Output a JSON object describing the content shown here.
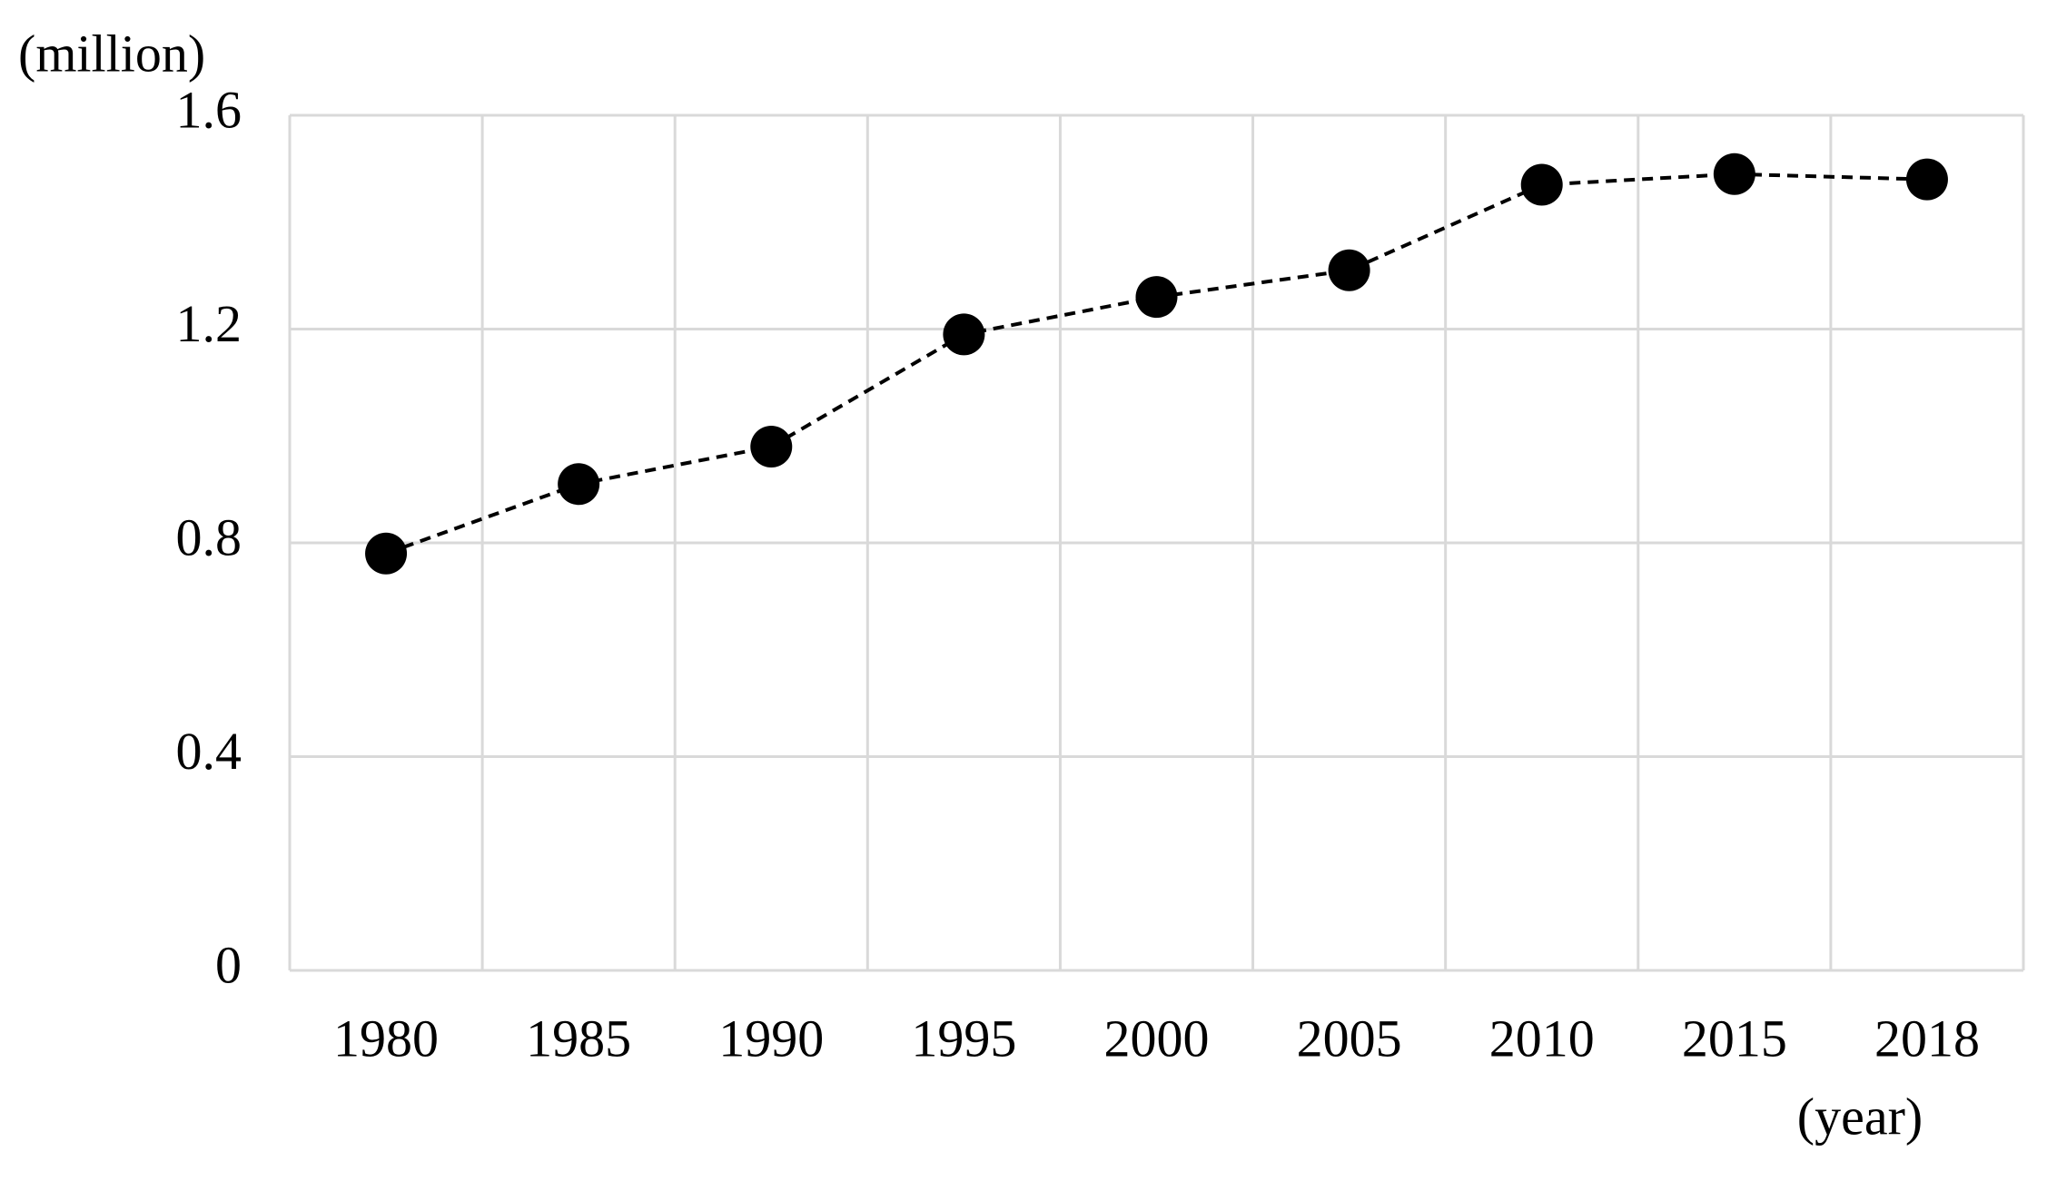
{
  "chart_data": {
    "type": "line",
    "y_label": "(million)",
    "x_label": "(year)",
    "categories": [
      "1980",
      "1985",
      "1990",
      "1995",
      "2000",
      "2005",
      "2010",
      "2015",
      "2018"
    ],
    "values": [
      0.78,
      0.91,
      0.98,
      1.19,
      1.26,
      1.31,
      1.47,
      1.49,
      1.48
    ],
    "color": "#000000",
    "ylim": [
      0,
      1.6
    ],
    "yticks": [
      0,
      0.4,
      0.8,
      1.2,
      1.6
    ],
    "grid": true
  }
}
